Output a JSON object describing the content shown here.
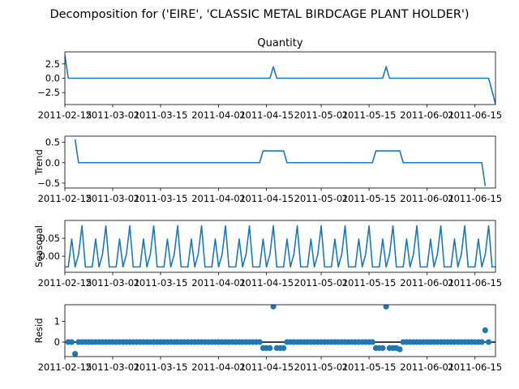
{
  "figure": {
    "suptitle": "Decomposition for ('EIRE', 'CLASSIC METAL BIRDCAGE PLANT HOLDER')"
  },
  "colors": {
    "series": "#1f77b4",
    "zero_line": "#000000",
    "axes": "#000000"
  },
  "x_axis": {
    "type": "date",
    "range": [
      "2011-02-15",
      "2011-06-21"
    ],
    "ticks": [
      "2011-02-15",
      "2011-03-01",
      "2011-03-15",
      "2011-04-01",
      "2011-04-15",
      "2011-05-01",
      "2011-05-15",
      "2011-06-01",
      "2011-06-15"
    ]
  },
  "chart_data": [
    {
      "type": "line",
      "title": "Quantity",
      "ylabel": "",
      "ylim": [
        -4.6,
        4.6
      ],
      "yticks": [
        "2.5",
        "0.0",
        "−2.5"
      ],
      "ytick_values": [
        2.5,
        0.0,
        -2.5
      ],
      "points": [
        [
          "2011-02-15",
          4.0
        ],
        [
          "2011-02-16",
          0.0
        ],
        [
          "2011-04-16",
          0.0
        ],
        [
          "2011-04-17",
          2.0
        ],
        [
          "2011-04-18",
          0.0
        ],
        [
          "2011-05-19",
          0.0
        ],
        [
          "2011-05-20",
          2.0
        ],
        [
          "2011-05-21",
          0.0
        ],
        [
          "2011-06-19",
          0.0
        ],
        [
          "2011-06-21",
          -4.5
        ]
      ]
    },
    {
      "type": "line",
      "title": "",
      "ylabel": "Trend",
      "ylim": [
        -0.62,
        0.65
      ],
      "yticks": [
        "0.5",
        "0.0",
        "−0.5"
      ],
      "ytick_values": [
        0.5,
        0.0,
        -0.5
      ],
      "points": [
        [
          "2011-02-18",
          0.57
        ],
        [
          "2011-02-19",
          0.0
        ],
        [
          "2011-04-13",
          0.0
        ],
        [
          "2011-04-14",
          0.29
        ],
        [
          "2011-04-20",
          0.29
        ],
        [
          "2011-04-21",
          0.0
        ],
        [
          "2011-05-16",
          0.0
        ],
        [
          "2011-05-17",
          0.29
        ],
        [
          "2011-05-24",
          0.29
        ],
        [
          "2011-05-25",
          0.0
        ],
        [
          "2011-06-17",
          0.0
        ],
        [
          "2011-06-18",
          -0.57
        ]
      ]
    },
    {
      "type": "line",
      "title": "",
      "ylabel": "Seasonal",
      "ylim": [
        -0.045,
        0.1
      ],
      "yticks": [
        "0.05",
        "0.00"
      ],
      "ytick_values": [
        0.05,
        0.0
      ],
      "period": 7,
      "start": "2011-02-15",
      "end": "2011-06-21",
      "pattern": [
        -0.03,
        -0.03,
        0.048,
        -0.03,
        0.005,
        0.085,
        -0.03
      ]
    },
    {
      "type": "scatter",
      "title": "",
      "ylabel": "Resid",
      "ylim": [
        -0.7,
        1.8
      ],
      "yticks": [
        "1",
        "0"
      ],
      "ytick_values": [
        1,
        0
      ],
      "zero_line": true,
      "baseline": {
        "start": "2011-02-16",
        "end": "2011-06-19",
        "value": 0.0
      },
      "overrides": [
        [
          "2011-02-18",
          -0.57
        ],
        [
          "2011-02-19",
          0.0
        ],
        [
          "2011-04-14",
          -0.29
        ],
        [
          "2011-04-15",
          -0.29
        ],
        [
          "2011-04-16",
          -0.29
        ],
        [
          "2011-04-17",
          1.71
        ],
        [
          "2011-04-18",
          -0.29
        ],
        [
          "2011-04-19",
          -0.29
        ],
        [
          "2011-04-20",
          -0.29
        ],
        [
          "2011-05-17",
          -0.29
        ],
        [
          "2011-05-18",
          -0.29
        ],
        [
          "2011-05-19",
          -0.29
        ],
        [
          "2011-05-20",
          1.71
        ],
        [
          "2011-05-21",
          -0.29
        ],
        [
          "2011-05-22",
          -0.29
        ],
        [
          "2011-05-23",
          -0.29
        ],
        [
          "2011-05-24",
          -0.35
        ],
        [
          "2011-06-18",
          0.57
        ]
      ]
    }
  ]
}
